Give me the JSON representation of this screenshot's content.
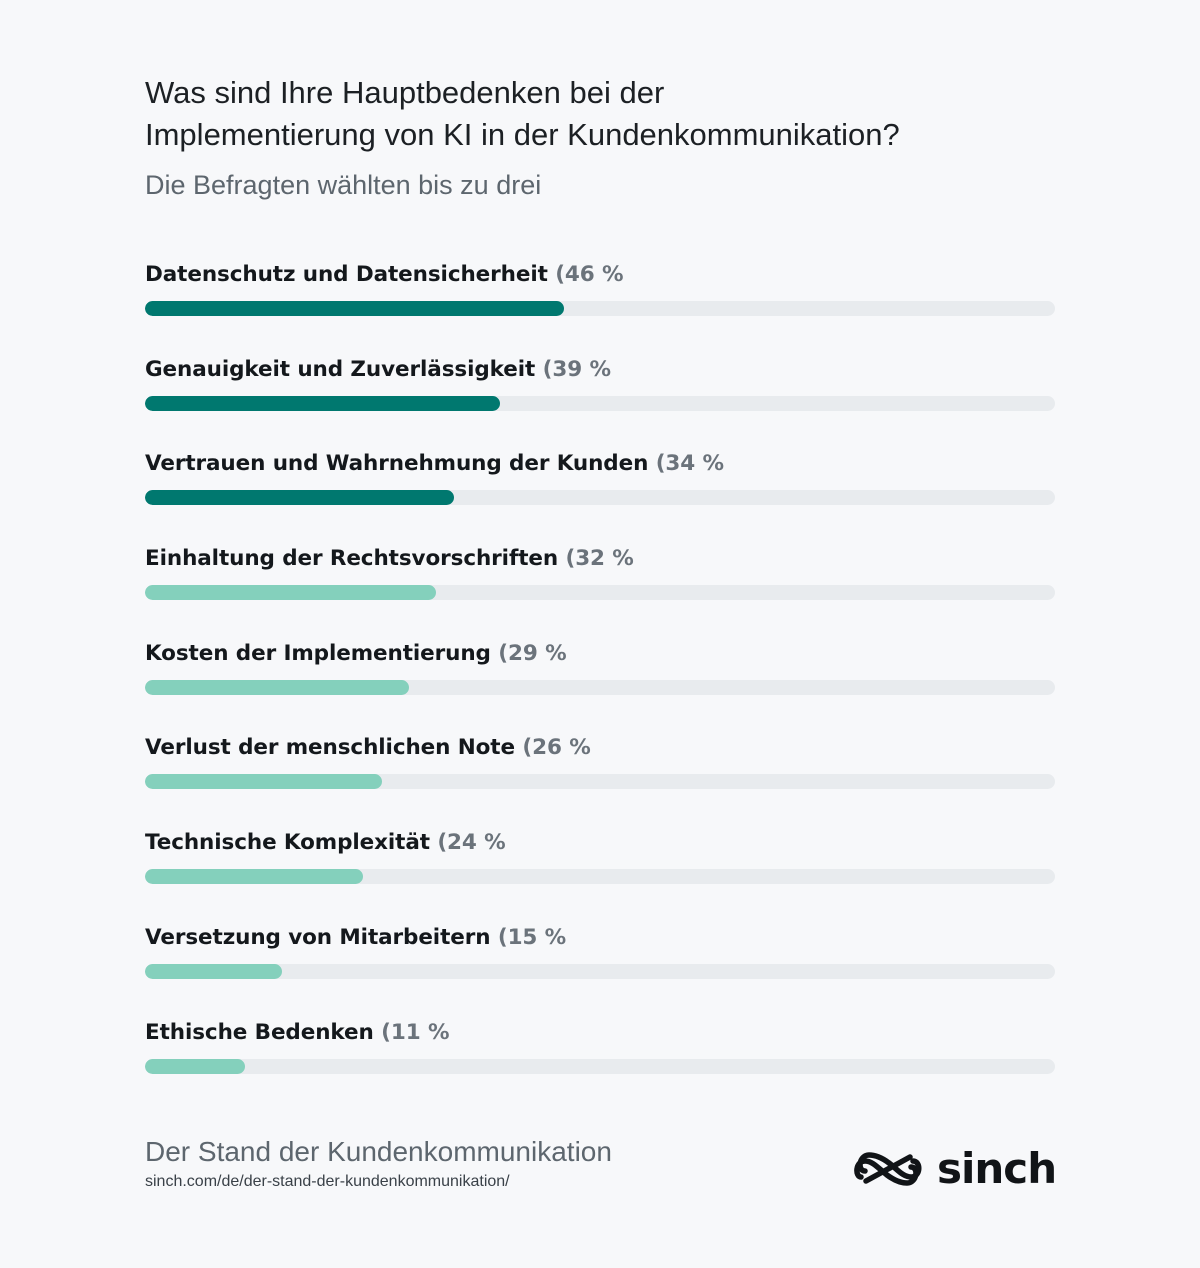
{
  "chart_data": {
    "type": "bar",
    "title_lines": [
      "Was sind Ihre Hauptbedenken bei der",
      "Implementierung von KI in der Kundenkommunikation?"
    ],
    "subtitle": "Die Befragten wählten bis zu drei",
    "categories": [
      "Datenschutz und Datensicherheit",
      "Genauigkeit und Zuverlässigkeit",
      "Vertrauen und Wahrnehmung der Kunden",
      "Einhaltung der Rechtsvorschriften",
      "Kosten der Implementierung",
      "Verlust der menschlichen Note",
      "Technische Komplexität",
      "Versetzung von Mitarbeitern",
      "Ethische Bedenken"
    ],
    "values": [
      46,
      39,
      34,
      32,
      29,
      26,
      24,
      15,
      11
    ],
    "value_labels": [
      "(46 %",
      "(39 %",
      "(34 %",
      "(32 %",
      "(29 %",
      "(26 %",
      "(24 %",
      "(15 %",
      "(11 %"
    ],
    "xlim": [
      0,
      100
    ],
    "colors": {
      "top3": "#00786f",
      "rest": "#84d0bc",
      "track": "#e8ebee"
    }
  },
  "footer": {
    "title": "Der Stand der Kundenkommunikation",
    "url": "sinch.com/de/der-stand-der-kundenkommunikation/"
  },
  "brand": {
    "logo_text": "sinch",
    "logo_icon": "sinch-logo-icon"
  }
}
